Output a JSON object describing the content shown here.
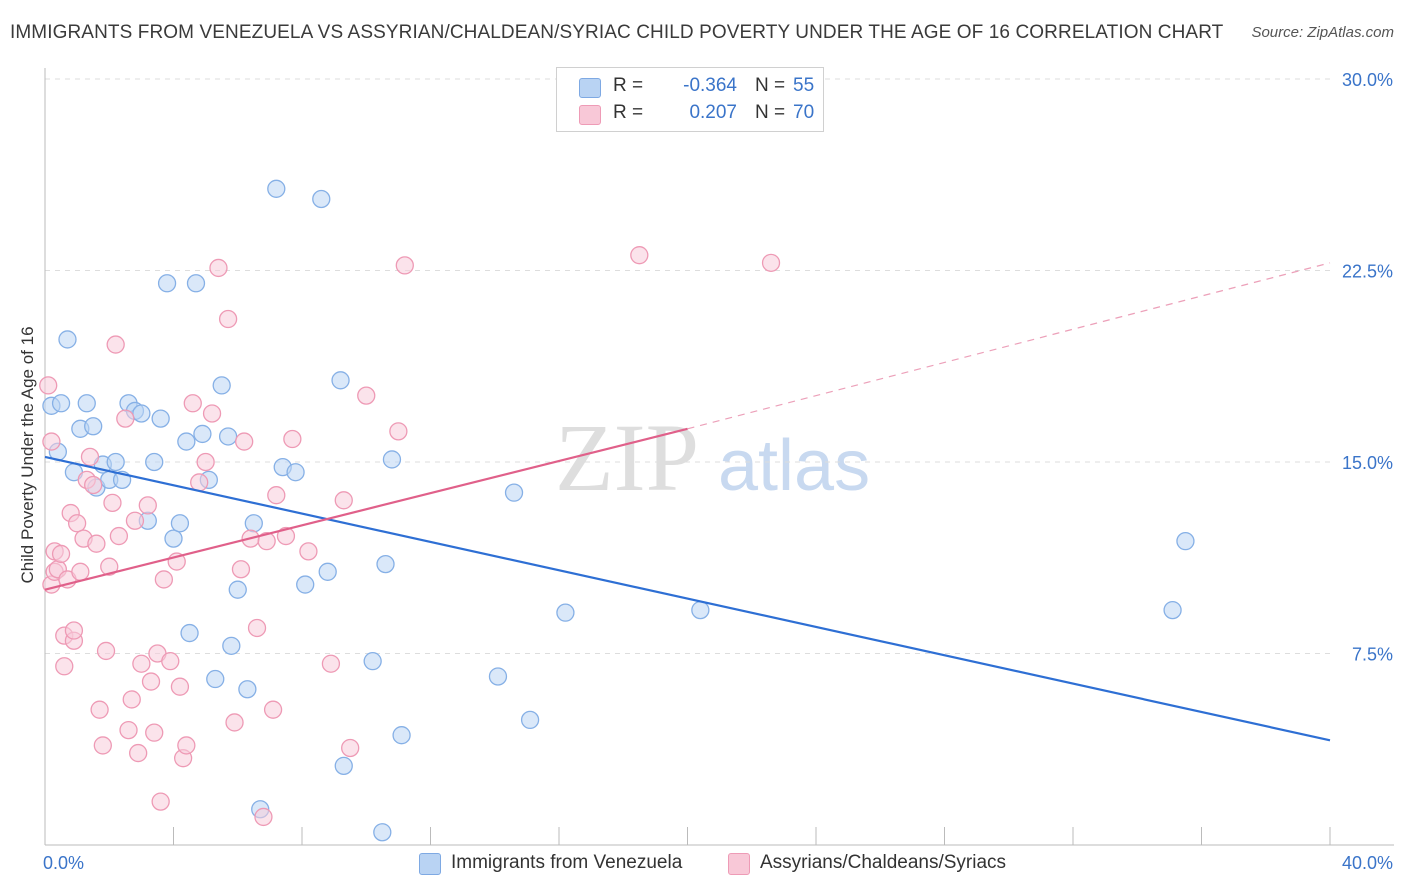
{
  "title": "IMMIGRANTS FROM VENEZUELA VS ASSYRIAN/CHALDEAN/SYRIAC CHILD POVERTY UNDER THE AGE OF 16 CORRELATION CHART",
  "source": "Source: ZipAtlas.com",
  "watermark": {
    "zip": "ZIP",
    "atlas": "atlas"
  },
  "legend": {
    "rows": [
      {
        "r_label": "R =",
        "r_value": "-0.364",
        "n_label": "N =",
        "n_value": "55"
      },
      {
        "r_label": "R =",
        "r_value": "0.207",
        "n_label": "N =",
        "n_value": "70"
      }
    ]
  },
  "chart_data": {
    "type": "scatter",
    "ylabel": "Child Poverty Under the Age of 16",
    "xlabel": "",
    "xlim": [
      0,
      40
    ],
    "ylim": [
      0,
      30
    ],
    "x_tick_labels": [
      "0.0%",
      "40.0%"
    ],
    "y_tick_labels": [
      "30.0%",
      "22.5%",
      "15.0%",
      "7.5%"
    ],
    "y_ticks": [
      30,
      22.5,
      15,
      7.5
    ],
    "grid": "horizontal dashed",
    "legend_placement": "top-center and bottom",
    "colors": {
      "venezuela": "#a9c8f0",
      "venezuela_line": "#2e6fd4",
      "assyrian": "#f5b8cb",
      "assyrian_line": "#e0608a"
    },
    "series": [
      {
        "name": "Immigrants from Venezuela",
        "r": -0.364,
        "n": 55,
        "trend": {
          "x": [
            0,
            40
          ],
          "y": [
            15.2,
            4.1
          ]
        },
        "points": [
          [
            0.2,
            17.2
          ],
          [
            0.4,
            15.4
          ],
          [
            0.5,
            17.3
          ],
          [
            0.7,
            19.8
          ],
          [
            0.9,
            14.6
          ],
          [
            1.1,
            16.3
          ],
          [
            1.3,
            17.3
          ],
          [
            1.5,
            16.4
          ],
          [
            1.6,
            14.0
          ],
          [
            1.8,
            14.9
          ],
          [
            2.0,
            14.3
          ],
          [
            2.2,
            15.0
          ],
          [
            2.4,
            14.3
          ],
          [
            2.6,
            17.3
          ],
          [
            2.8,
            17.0
          ],
          [
            3.0,
            16.9
          ],
          [
            3.2,
            12.7
          ],
          [
            3.4,
            15.0
          ],
          [
            3.6,
            16.7
          ],
          [
            3.8,
            22.0
          ],
          [
            4.0,
            12.0
          ],
          [
            4.2,
            12.6
          ],
          [
            4.4,
            15.8
          ],
          [
            4.5,
            8.3
          ],
          [
            4.7,
            22.0
          ],
          [
            4.9,
            16.1
          ],
          [
            5.1,
            14.3
          ],
          [
            5.3,
            6.5
          ],
          [
            5.5,
            18.0
          ],
          [
            5.7,
            16.0
          ],
          [
            5.8,
            7.8
          ],
          [
            6.0,
            10.0
          ],
          [
            6.3,
            6.1
          ],
          [
            6.5,
            12.6
          ],
          [
            6.7,
            1.4
          ],
          [
            7.2,
            25.7
          ],
          [
            7.4,
            14.8
          ],
          [
            7.8,
            14.6
          ],
          [
            8.1,
            10.2
          ],
          [
            8.6,
            25.3
          ],
          [
            8.8,
            10.7
          ],
          [
            9.2,
            18.2
          ],
          [
            9.3,
            3.1
          ],
          [
            10.2,
            7.2
          ],
          [
            10.5,
            0.5
          ],
          [
            10.6,
            11.0
          ],
          [
            10.8,
            15.1
          ],
          [
            11.1,
            4.3
          ],
          [
            14.1,
            6.6
          ],
          [
            14.6,
            13.8
          ],
          [
            15.1,
            4.9
          ],
          [
            16.2,
            9.1
          ],
          [
            20.4,
            9.2
          ],
          [
            35.1,
            9.2
          ],
          [
            35.5,
            11.9
          ]
        ]
      },
      {
        "name": "Assyrians/Chaldeans/Syriacs",
        "r": 0.207,
        "n": 70,
        "trend": {
          "x": [
            0,
            20
          ],
          "y": [
            10.0,
            16.3
          ]
        },
        "trend_dashed": {
          "x": [
            20,
            40
          ],
          "y": [
            16.3,
            22.8
          ]
        },
        "points": [
          [
            0.1,
            18.0
          ],
          [
            0.2,
            15.8
          ],
          [
            0.2,
            10.2
          ],
          [
            0.3,
            10.7
          ],
          [
            0.3,
            11.5
          ],
          [
            0.4,
            10.8
          ],
          [
            0.5,
            11.4
          ],
          [
            0.6,
            7.0
          ],
          [
            0.6,
            8.2
          ],
          [
            0.7,
            10.4
          ],
          [
            0.8,
            13.0
          ],
          [
            0.9,
            8.0
          ],
          [
            0.9,
            8.4
          ],
          [
            1.0,
            12.6
          ],
          [
            1.1,
            10.7
          ],
          [
            1.2,
            12.0
          ],
          [
            1.3,
            14.3
          ],
          [
            1.4,
            15.2
          ],
          [
            1.5,
            14.1
          ],
          [
            1.6,
            11.8
          ],
          [
            1.7,
            5.3
          ],
          [
            1.8,
            3.9
          ],
          [
            1.9,
            7.6
          ],
          [
            2.0,
            10.9
          ],
          [
            2.1,
            13.4
          ],
          [
            2.2,
            19.6
          ],
          [
            2.3,
            12.1
          ],
          [
            2.5,
            16.7
          ],
          [
            2.6,
            4.5
          ],
          [
            2.7,
            5.7
          ],
          [
            2.8,
            12.7
          ],
          [
            2.9,
            3.6
          ],
          [
            3.0,
            7.1
          ],
          [
            3.2,
            13.3
          ],
          [
            3.3,
            6.4
          ],
          [
            3.4,
            4.4
          ],
          [
            3.5,
            7.5
          ],
          [
            3.6,
            1.7
          ],
          [
            3.7,
            10.4
          ],
          [
            3.9,
            7.2
          ],
          [
            4.1,
            11.1
          ],
          [
            4.2,
            6.2
          ],
          [
            4.3,
            3.4
          ],
          [
            4.4,
            3.9
          ],
          [
            4.6,
            17.3
          ],
          [
            4.8,
            14.2
          ],
          [
            5.0,
            15.0
          ],
          [
            5.2,
            16.9
          ],
          [
            5.4,
            22.6
          ],
          [
            5.7,
            20.6
          ],
          [
            5.9,
            4.8
          ],
          [
            6.1,
            10.8
          ],
          [
            6.2,
            15.8
          ],
          [
            6.4,
            12.0
          ],
          [
            6.6,
            8.5
          ],
          [
            6.8,
            1.1
          ],
          [
            6.9,
            11.9
          ],
          [
            7.1,
            5.3
          ],
          [
            7.2,
            13.7
          ],
          [
            7.5,
            12.1
          ],
          [
            7.7,
            15.9
          ],
          [
            8.2,
            11.5
          ],
          [
            8.9,
            7.1
          ],
          [
            9.3,
            13.5
          ],
          [
            9.5,
            3.8
          ],
          [
            10.0,
            17.6
          ],
          [
            11.0,
            16.2
          ],
          [
            11.2,
            22.7
          ],
          [
            18.5,
            23.1
          ],
          [
            22.6,
            22.8
          ]
        ]
      }
    ]
  }
}
